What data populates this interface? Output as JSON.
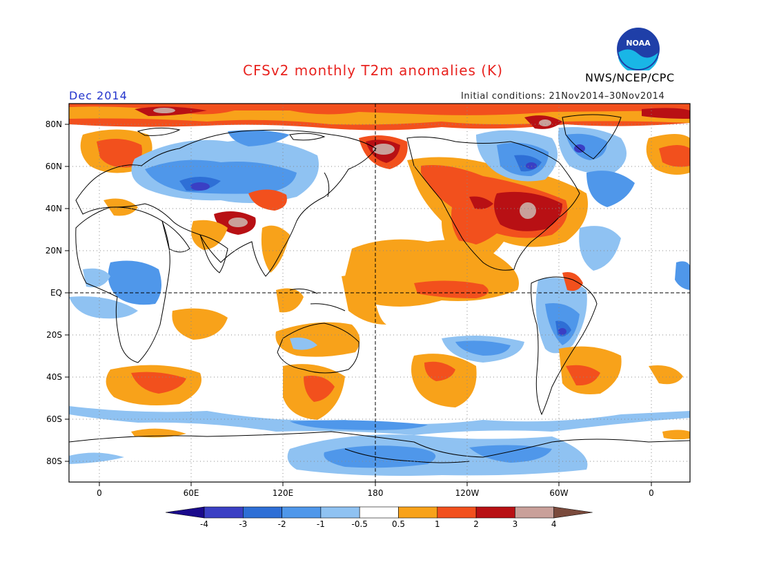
{
  "header": {
    "title": "CFSv2 monthly T2m anomalies (K)",
    "agency": "NWS/NCEP/CPC",
    "month": "Dec 2014",
    "initial_conditions": "Initial conditions: 21Nov2014–30Nov2014",
    "logo_text": "NOAA"
  },
  "map": {
    "projection": "cylindrical-equidistant",
    "center_longitude": 180,
    "lat_ticks": [
      "80N",
      "60N",
      "40N",
      "20N",
      "EQ",
      "20S",
      "40S",
      "60S",
      "80S"
    ],
    "lon_ticks": [
      "0",
      "60E",
      "120E",
      "180",
      "120W",
      "60W",
      "0"
    ],
    "reference_lines": [
      "equator",
      "dateline"
    ],
    "grid": "dotted"
  },
  "colorbar": {
    "tick_labels": [
      "-4",
      "-3",
      "-2",
      "-1",
      "-0.5",
      "0.5",
      "1",
      "2",
      "3",
      "4"
    ],
    "colors": [
      "#1a0a8c",
      "#3a3fc4",
      "#2e6fd6",
      "#4f97ea",
      "#8fc2f2",
      "#ffffff",
      "#f8a21a",
      "#f2501d",
      "#b81014",
      "#c9a09a",
      "#7a4a3c"
    ],
    "min_arrow_color": "#1a0a8c",
    "max_arrow_color": "#7a4a3c"
  },
  "colors": {
    "title": "#e8231f",
    "month": "#2233cc",
    "noaa_blue": "#1f3fa8",
    "noaa_cyan": "#19b6e6"
  }
}
